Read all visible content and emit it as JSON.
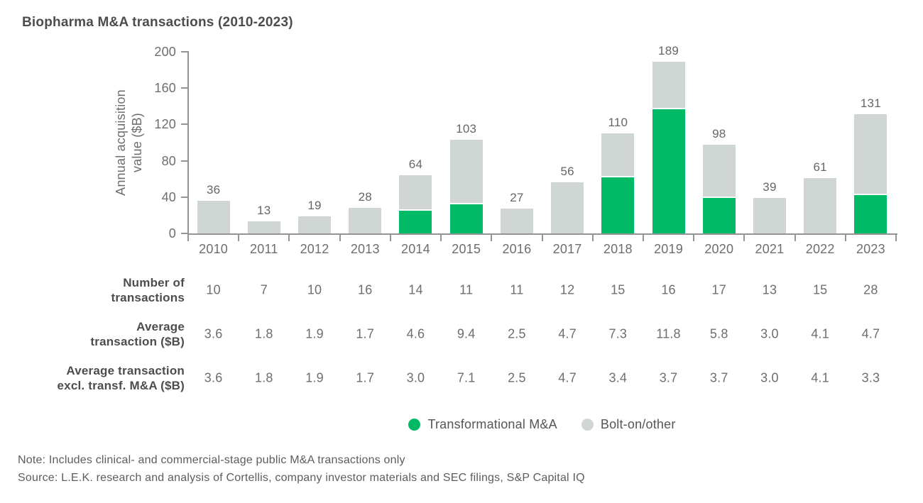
{
  "title": "Biopharma M&A transactions (2010-2023)",
  "chart_data": {
    "type": "bar",
    "stacked": true,
    "title": "Biopharma M&A transactions (2010-2023)",
    "ylabel": "Annual acquisition value ($B)",
    "ylabel_lines": [
      "Annual acquisition",
      "value ($B)"
    ],
    "xlabel": "",
    "ylim": [
      0,
      200
    ],
    "yticks": [
      0,
      40,
      80,
      120,
      160,
      200
    ],
    "grid": false,
    "legend_position": "bottom",
    "categories": [
      "2010",
      "2011",
      "2012",
      "2013",
      "2014",
      "2015",
      "2016",
      "2017",
      "2018",
      "2019",
      "2020",
      "2021",
      "2022",
      "2023"
    ],
    "series": [
      {
        "name": "Transformational M&A",
        "color": "#00ba66",
        "values": [
          0,
          0,
          0,
          0,
          25,
          32,
          0,
          0,
          62,
          137,
          39,
          0,
          0,
          42
        ]
      },
      {
        "name": "Bolt-on/other",
        "color": "#cfd6d3",
        "values": [
          36,
          13,
          19,
          28,
          39,
          71,
          27,
          56,
          48,
          52,
          59,
          39,
          61,
          89
        ]
      }
    ],
    "total_labels": [
      36,
      13,
      19,
      28,
      64,
      103,
      27,
      56,
      110,
      189,
      98,
      39,
      61,
      131
    ]
  },
  "table": {
    "rows": [
      {
        "label": "Number of transactions",
        "label_lines": [
          "Number of",
          "transactions"
        ],
        "values": [
          "10",
          "7",
          "10",
          "16",
          "14",
          "11",
          "11",
          "12",
          "15",
          "16",
          "17",
          "13",
          "15",
          "28"
        ]
      },
      {
        "label": "Average transaction ($B)",
        "label_lines": [
          "Average",
          "transaction ($B)"
        ],
        "values": [
          "3.6",
          "1.8",
          "1.9",
          "1.7",
          "4.6",
          "9.4",
          "2.5",
          "4.7",
          "7.3",
          "11.8",
          "5.8",
          "3.0",
          "4.1",
          "4.7"
        ]
      },
      {
        "label": "Average transaction excl. transf. M&A ($B)",
        "label_lines": [
          "Average transaction",
          "excl. transf. M&A ($B)"
        ],
        "values": [
          "3.6",
          "1.8",
          "1.9",
          "1.7",
          "3.0",
          "7.1",
          "2.5",
          "4.7",
          "3.4",
          "3.7",
          "3.7",
          "3.0",
          "4.1",
          "3.3"
        ]
      }
    ]
  },
  "legend": [
    {
      "label": "Transformational M&A",
      "color": "#00ba66"
    },
    {
      "label": "Bolt-on/other",
      "color": "#cfd6d3"
    }
  ],
  "notes": {
    "note": "Note: Includes clinical- and commercial-stage public M&A transactions only",
    "source": "Source: L.E.K. research and analysis of Cortellis, company investor materials and SEC filings, S&P Capital IQ"
  },
  "colors": {
    "transformational_green": "#00ba66",
    "bolt_on_gray": "#cfd6d3",
    "axis_gray": "#949494",
    "text_gray": "#6e6e6e",
    "dark_text": "#4d4d4d"
  }
}
